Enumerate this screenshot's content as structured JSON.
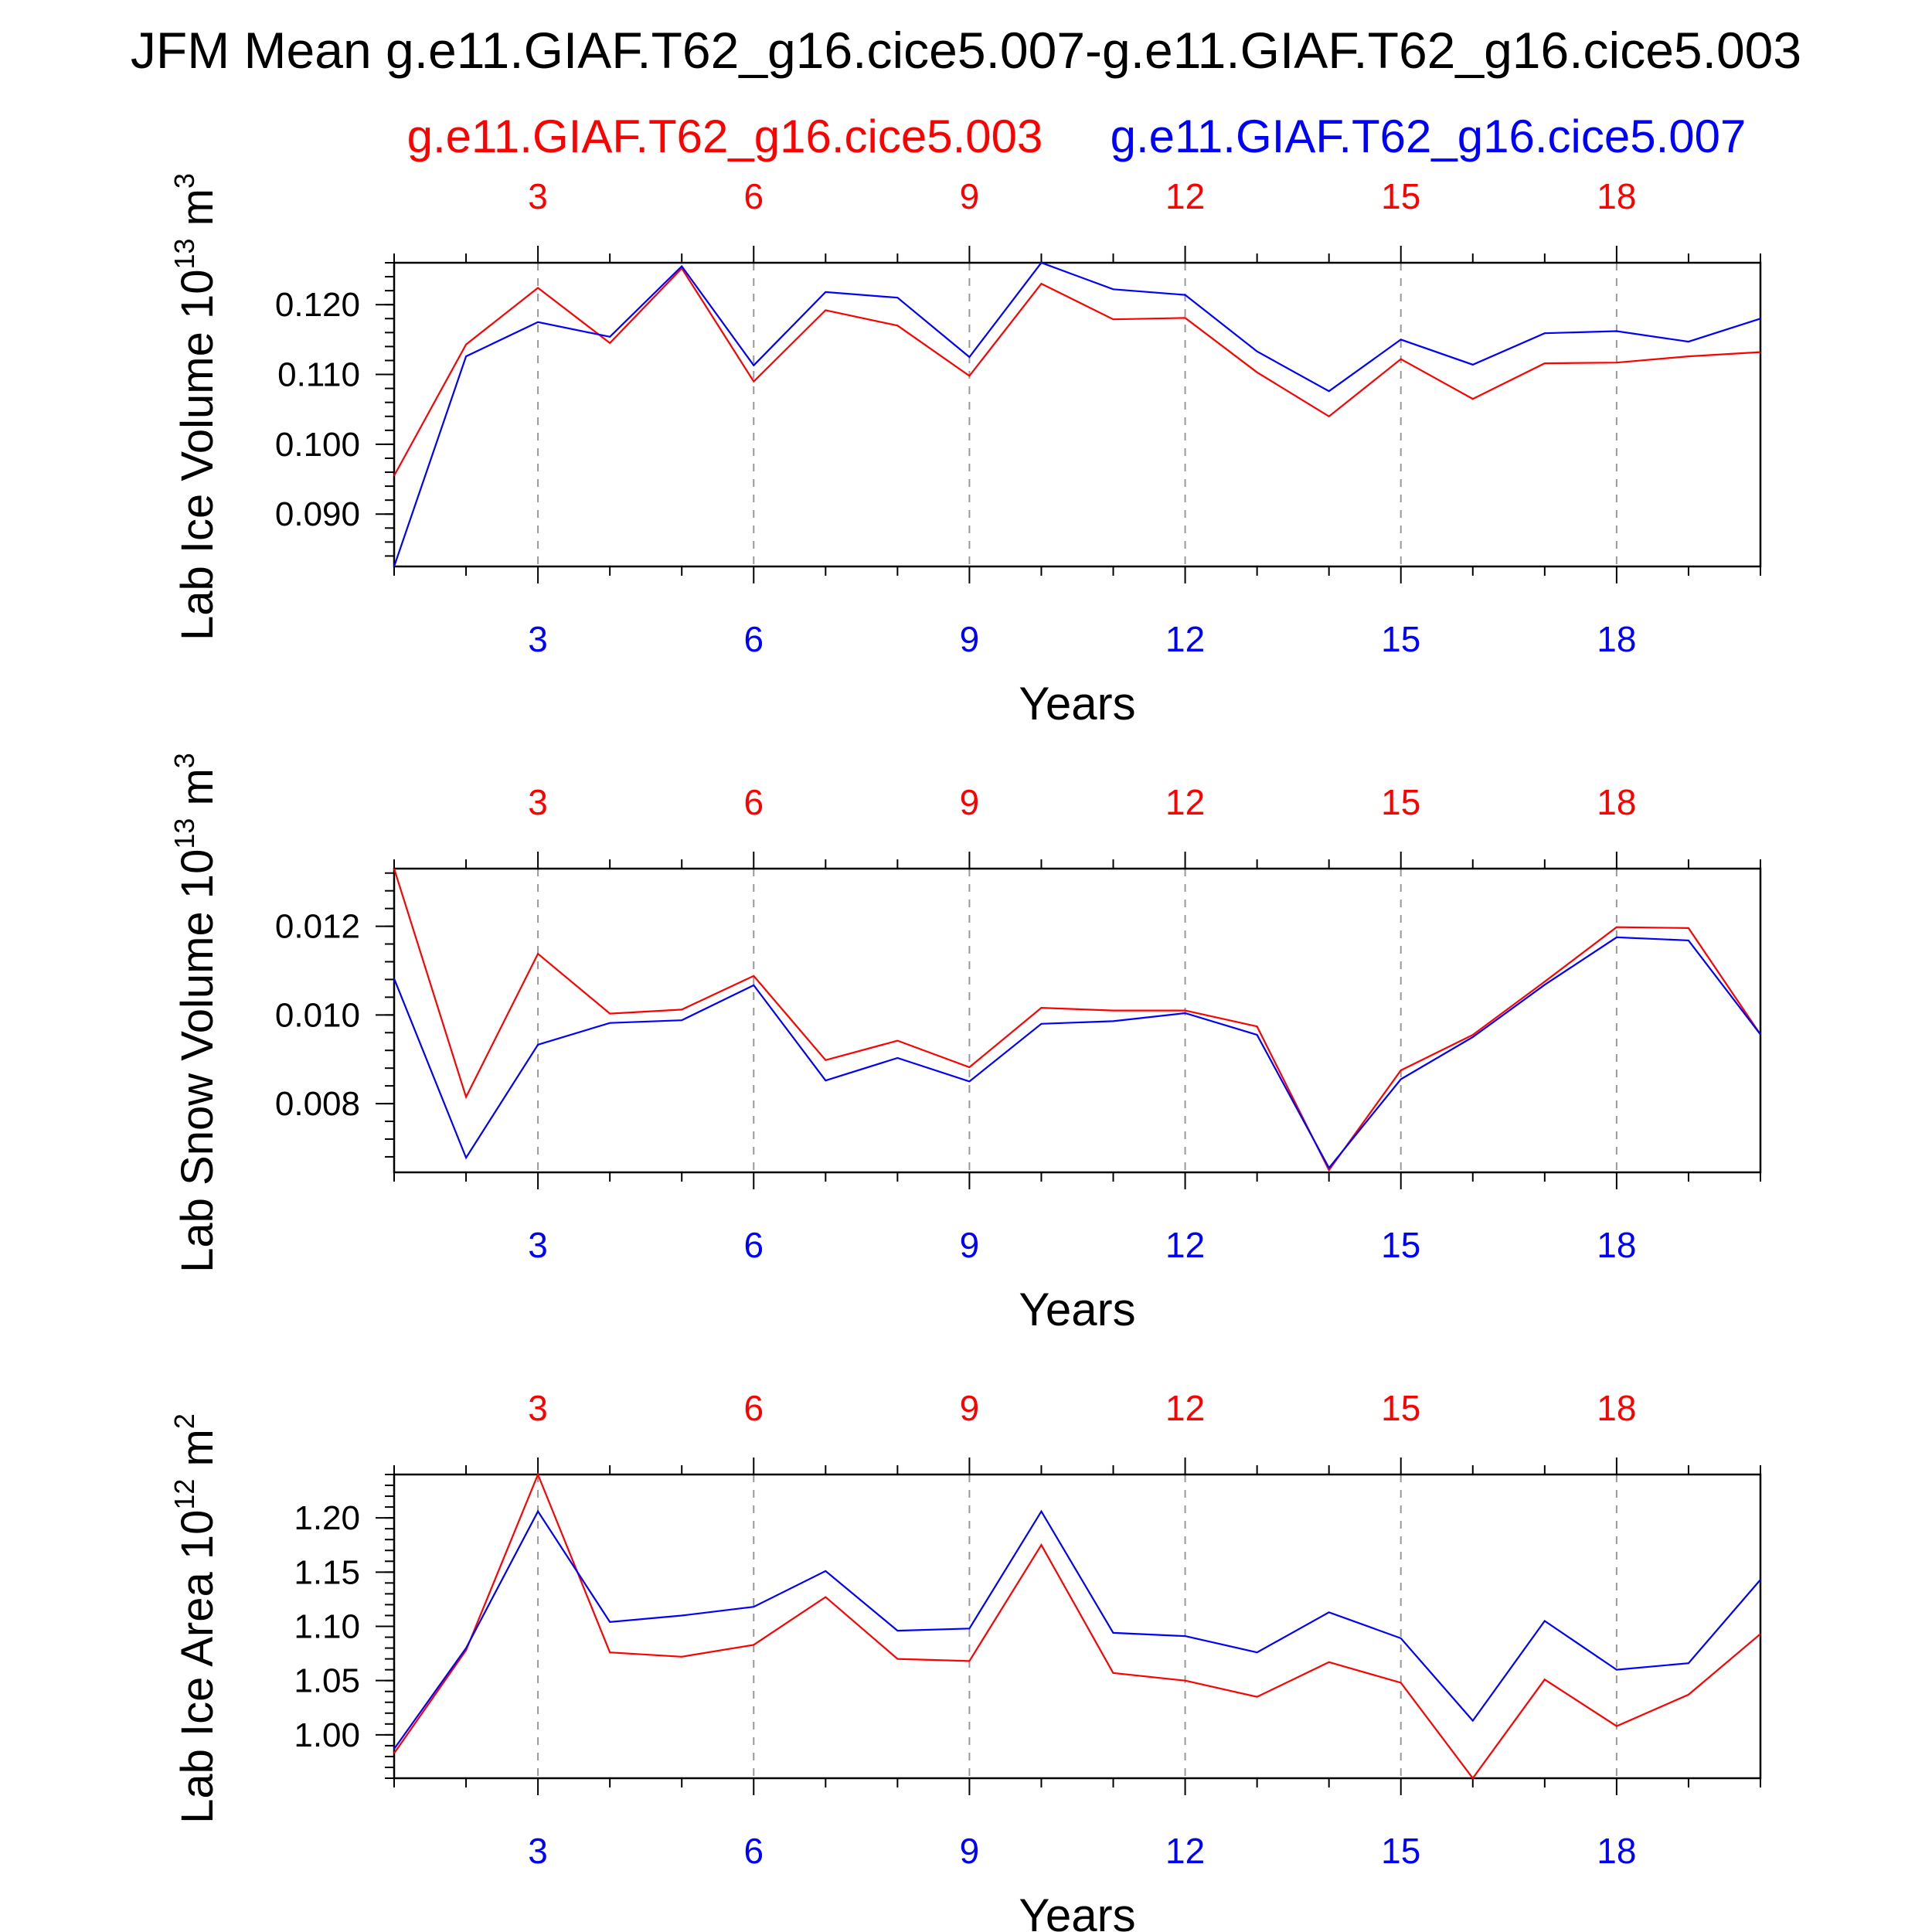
{
  "title": "JFM Mean g.e11.GIAF.T62_g16.cice5.007-g.e11.GIAF.T62_g16.cice5.003",
  "legend": {
    "left_label": "g.e11.GIAF.T62_g16.cice5.003",
    "right_label": "g.e11.GIAF.T62_g16.cice5.007"
  },
  "colors": {
    "red": "#ff0000",
    "blue": "#0000ff",
    "axis": "#000000",
    "grid": "#999999"
  },
  "chart_data": [
    {
      "type": "line",
      "ylabel_main": "Lab Ice Volume 10",
      "ylabel_exp": "13",
      "ylabel_unit": " m",
      "ylabel_unit_exp": "3",
      "xlabel": "Years",
      "xlim": [
        1,
        20
      ],
      "ylim": [
        0.0825,
        0.126
      ],
      "yticks": [
        0.09,
        0.1,
        0.11,
        0.12
      ],
      "ytick_labels": [
        "0.090",
        "0.100",
        "0.110",
        "0.120"
      ],
      "yminor_step": 0.002,
      "xticks": [
        3,
        6,
        9,
        12,
        15,
        18
      ],
      "x": [
        1,
        2,
        3,
        4,
        5,
        6,
        7,
        8,
        9,
        10,
        11,
        12,
        13,
        14,
        15,
        16,
        17,
        18,
        19,
        20
      ],
      "series": [
        {
          "name": "g.e11.GIAF.T62_g16.cice5.003",
          "color": "red",
          "values": [
            0.0955,
            0.1143,
            0.1224,
            0.1145,
            0.1252,
            0.109,
            0.1192,
            0.117,
            0.1098,
            0.123,
            0.1179,
            0.1181,
            0.1103,
            0.104,
            0.1122,
            0.1065,
            0.1116,
            0.1117,
            0.1126,
            0.1132
          ]
        },
        {
          "name": "g.e11.GIAF.T62_g16.cice5.007",
          "color": "blue",
          "values": [
            0.0825,
            0.1126,
            0.1175,
            0.1154,
            0.1255,
            0.1113,
            0.1218,
            0.121,
            0.1125,
            0.126,
            0.1222,
            0.1214,
            0.1133,
            0.1076,
            0.115,
            0.1114,
            0.1159,
            0.1162,
            0.1147,
            0.118
          ]
        }
      ]
    },
    {
      "type": "line",
      "ylabel_main": "Lab Snow Volume 10",
      "ylabel_exp": "13",
      "ylabel_unit": " m",
      "ylabel_unit_exp": "3",
      "xlabel": "Years",
      "xlim": [
        1,
        20
      ],
      "ylim": [
        0.00645,
        0.0133
      ],
      "yticks": [
        0.008,
        0.01,
        0.012
      ],
      "ytick_labels": [
        "0.008",
        "0.010",
        "0.012"
      ],
      "yminor_step": 0.0004,
      "xticks": [
        3,
        6,
        9,
        12,
        15,
        18
      ],
      "x": [
        1,
        2,
        3,
        4,
        5,
        6,
        7,
        8,
        9,
        10,
        11,
        12,
        13,
        14,
        15,
        16,
        17,
        18,
        19,
        20
      ],
      "series": [
        {
          "name": "g.e11.GIAF.T62_g16.cice5.003",
          "color": "red",
          "values": [
            0.0133,
            0.00815,
            0.01138,
            0.01003,
            0.01012,
            0.01088,
            0.00898,
            0.00942,
            0.00882,
            0.01016,
            0.0101,
            0.0101,
            0.00974,
            0.0065,
            0.00875,
            0.00955,
            0.01075,
            0.01198,
            0.01196,
            0.00956
          ]
        },
        {
          "name": "g.e11.GIAF.T62_g16.cice5.007",
          "color": "blue",
          "values": [
            0.01082,
            0.00678,
            0.00933,
            0.00982,
            0.00988,
            0.01067,
            0.00852,
            0.00903,
            0.0085,
            0.0098,
            0.00986,
            0.01004,
            0.00955,
            0.00655,
            0.00855,
            0.0095,
            0.01068,
            0.01175,
            0.01168,
            0.00956
          ]
        }
      ]
    },
    {
      "type": "line",
      "ylabel_main": "Lab Ice Area 10",
      "ylabel_exp": "12",
      "ylabel_unit": " m",
      "ylabel_unit_exp": "2",
      "xlabel": "Years",
      "xlim": [
        1,
        20
      ],
      "ylim": [
        0.96,
        1.24
      ],
      "yticks": [
        1.0,
        1.05,
        1.1,
        1.15,
        1.2
      ],
      "ytick_labels": [
        "1.00",
        "1.05",
        "1.10",
        "1.15",
        "1.20"
      ],
      "yminor_step": 0.01,
      "xticks": [
        3,
        6,
        9,
        12,
        15,
        18
      ],
      "x": [
        1,
        2,
        3,
        4,
        5,
        6,
        7,
        8,
        9,
        10,
        11,
        12,
        13,
        14,
        15,
        16,
        17,
        18,
        19,
        20
      ],
      "series": [
        {
          "name": "g.e11.GIAF.T62_g16.cice5.003",
          "color": "red",
          "values": [
            0.983,
            1.078,
            1.24,
            1.076,
            1.072,
            1.083,
            1.127,
            1.07,
            1.068,
            1.175,
            1.057,
            1.05,
            1.035,
            1.067,
            1.048,
            0.96,
            1.051,
            1.008,
            1.037,
            1.093
          ]
        },
        {
          "name": "g.e11.GIAF.T62_g16.cice5.007",
          "color": "blue",
          "values": [
            0.987,
            1.08,
            1.206,
            1.104,
            1.11,
            1.118,
            1.151,
            1.096,
            1.098,
            1.206,
            1.094,
            1.091,
            1.076,
            1.113,
            1.089,
            1.013,
            1.105,
            1.06,
            1.066,
            1.143
          ]
        }
      ]
    }
  ]
}
